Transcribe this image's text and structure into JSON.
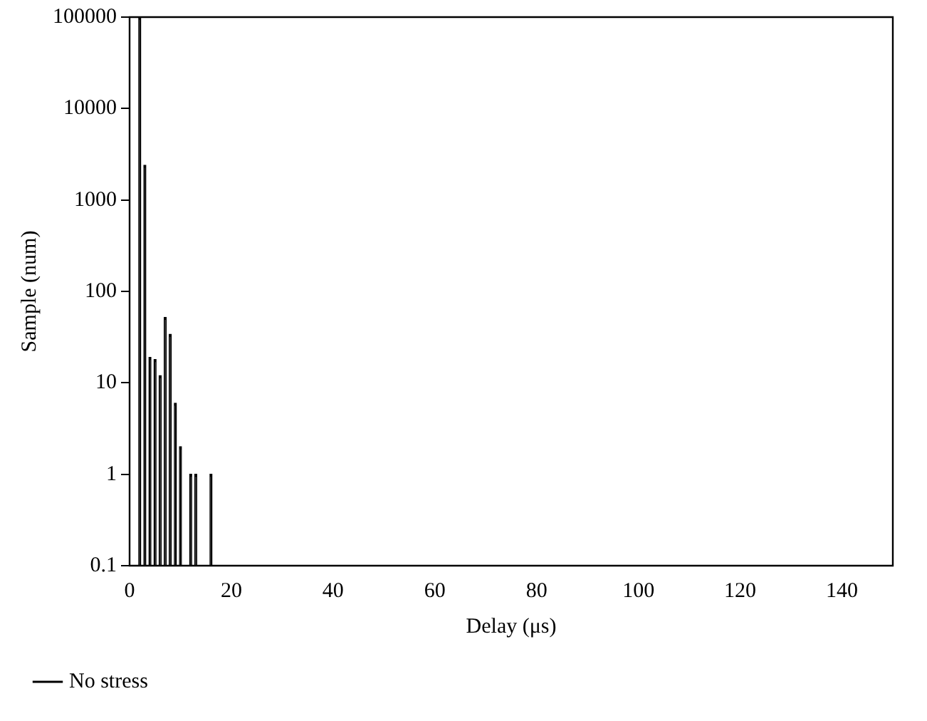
{
  "chart_data": {
    "type": "bar",
    "xlabel": "Delay (μs)",
    "ylabel": "Sample (num)",
    "log": "y",
    "x": [
      2,
      3,
      4,
      5,
      6,
      7,
      8,
      9,
      10,
      12,
      13,
      16
    ],
    "series": [
      {
        "name": "No stress",
        "color": "#000000",
        "values": [
          100000,
          2400,
          19,
          18,
          12,
          52,
          34,
          6,
          2,
          1,
          1,
          1
        ]
      }
    ],
    "xlim": [
      0,
      150
    ],
    "xticks": [
      0,
      20,
      40,
      60,
      80,
      100,
      120,
      140
    ],
    "ylim": [
      0.1,
      100000
    ],
    "yticks": [
      0.1,
      1,
      10,
      100,
      1000,
      10000,
      100000
    ],
    "grid": false,
    "legend": "bottom left"
  }
}
